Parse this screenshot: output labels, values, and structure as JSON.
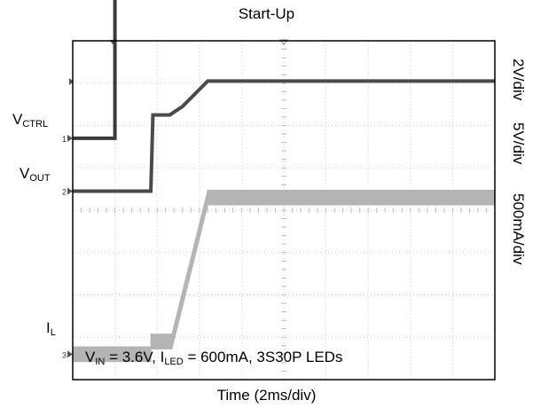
{
  "chart_data": {
    "type": "line",
    "title": "Start-Up",
    "xlabel": "Time (2ms/div)",
    "x_unit": "ms",
    "xlim": [
      0,
      20
    ],
    "divisions": {
      "x": 10,
      "y": 8
    },
    "grid": true,
    "channels": [
      {
        "name": "V_CTRL",
        "label_main": "V",
        "label_sub": "CTRL",
        "scale": "2V/div",
        "marker": "1",
        "color": "#3a3a3a",
        "baseline_div": 5.7,
        "points": [
          [
            0,
            0
          ],
          [
            2.0,
            0
          ],
          [
            2.0,
            3.6
          ],
          [
            20,
            3.6
          ]
        ]
      },
      {
        "name": "V_OUT",
        "label_main": "V",
        "label_sub": "OUT",
        "scale": "5V/div",
        "marker": "2",
        "color": "#4a4a4a",
        "baseline_div": 4.45,
        "points": [
          [
            0,
            0
          ],
          [
            3.7,
            0
          ],
          [
            3.8,
            1.8
          ],
          [
            4.6,
            1.8
          ],
          [
            5.2,
            2.0
          ],
          [
            6.4,
            2.6
          ],
          [
            20,
            2.6
          ]
        ]
      },
      {
        "name": "I_L",
        "label_main": "I",
        "label_sub": "L",
        "scale": "500mA/div",
        "marker": "3",
        "color": "#b4b4b4",
        "baseline_div": 0.6,
        "points": [
          [
            0,
            0
          ],
          [
            3.7,
            0
          ],
          [
            3.7,
            0.3
          ],
          [
            4.7,
            0.3
          ],
          [
            6.4,
            3.7
          ],
          [
            20,
            3.7
          ]
        ],
        "ripple_mA": 175
      }
    ],
    "annotation": {
      "parts": [
        {
          "text": "V",
          "sub": "IN"
        },
        {
          "text": " = 3.6V, I",
          "sub": "LED"
        },
        {
          "text": " = 600mA, 3S30P LEDs",
          "sub": ""
        }
      ]
    }
  }
}
